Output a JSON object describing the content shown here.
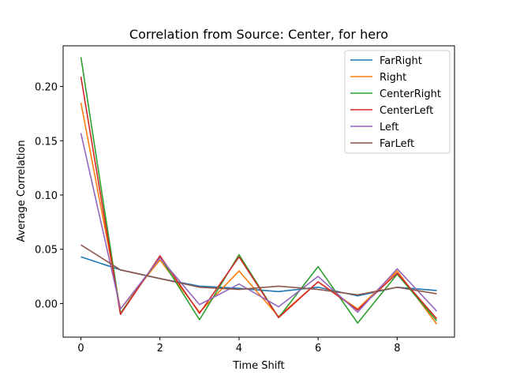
{
  "chart_data": {
    "type": "line",
    "title": "Correlation from Source: Center, for hero",
    "xlabel": "Time Shift",
    "ylabel": "Average Correlation",
    "xlim": [
      -0.45,
      9.45
    ],
    "ylim": [
      -0.031,
      0.2375
    ],
    "xticks": [
      0,
      2,
      4,
      6,
      8
    ],
    "xtick_labels": [
      "0",
      "2",
      "4",
      "6",
      "8"
    ],
    "yticks": [
      0.0,
      0.05,
      0.1,
      0.15,
      0.2
    ],
    "ytick_labels": [
      "0.00",
      "0.05",
      "0.10",
      "0.15",
      "0.20"
    ],
    "grid": false,
    "legend_position": "top-right",
    "x": [
      0,
      1,
      2,
      3,
      4,
      5,
      6,
      7,
      8,
      9
    ],
    "series": [
      {
        "name": "FarRight",
        "color": "#1f77b4",
        "values": [
          0.043,
          0.031,
          0.023,
          0.016,
          0.014,
          0.011,
          0.015,
          0.007,
          0.015,
          0.012
        ]
      },
      {
        "name": "Right",
        "color": "#ff7f0e",
        "values": [
          0.185,
          -0.005,
          0.04,
          -0.008,
          0.03,
          -0.012,
          0.02,
          -0.005,
          0.03,
          -0.019
        ]
      },
      {
        "name": "CenterRight",
        "color": "#2ca02c",
        "values": [
          0.227,
          -0.009,
          0.043,
          -0.015,
          0.045,
          -0.013,
          0.034,
          -0.018,
          0.027,
          -0.016
        ]
      },
      {
        "name": "CenterLeft",
        "color": "#d62728",
        "values": [
          0.209,
          -0.01,
          0.044,
          -0.009,
          0.043,
          -0.013,
          0.02,
          -0.006,
          0.028,
          -0.014
        ]
      },
      {
        "name": "Left",
        "color": "#9467bd",
        "values": [
          0.157,
          -0.005,
          0.042,
          -0.001,
          0.018,
          -0.003,
          0.025,
          -0.008,
          0.032,
          -0.007
        ]
      },
      {
        "name": "FarLeft",
        "color": "#8c564b",
        "values": [
          0.054,
          0.031,
          0.023,
          0.015,
          0.013,
          0.016,
          0.013,
          0.008,
          0.015,
          0.009
        ]
      }
    ]
  }
}
